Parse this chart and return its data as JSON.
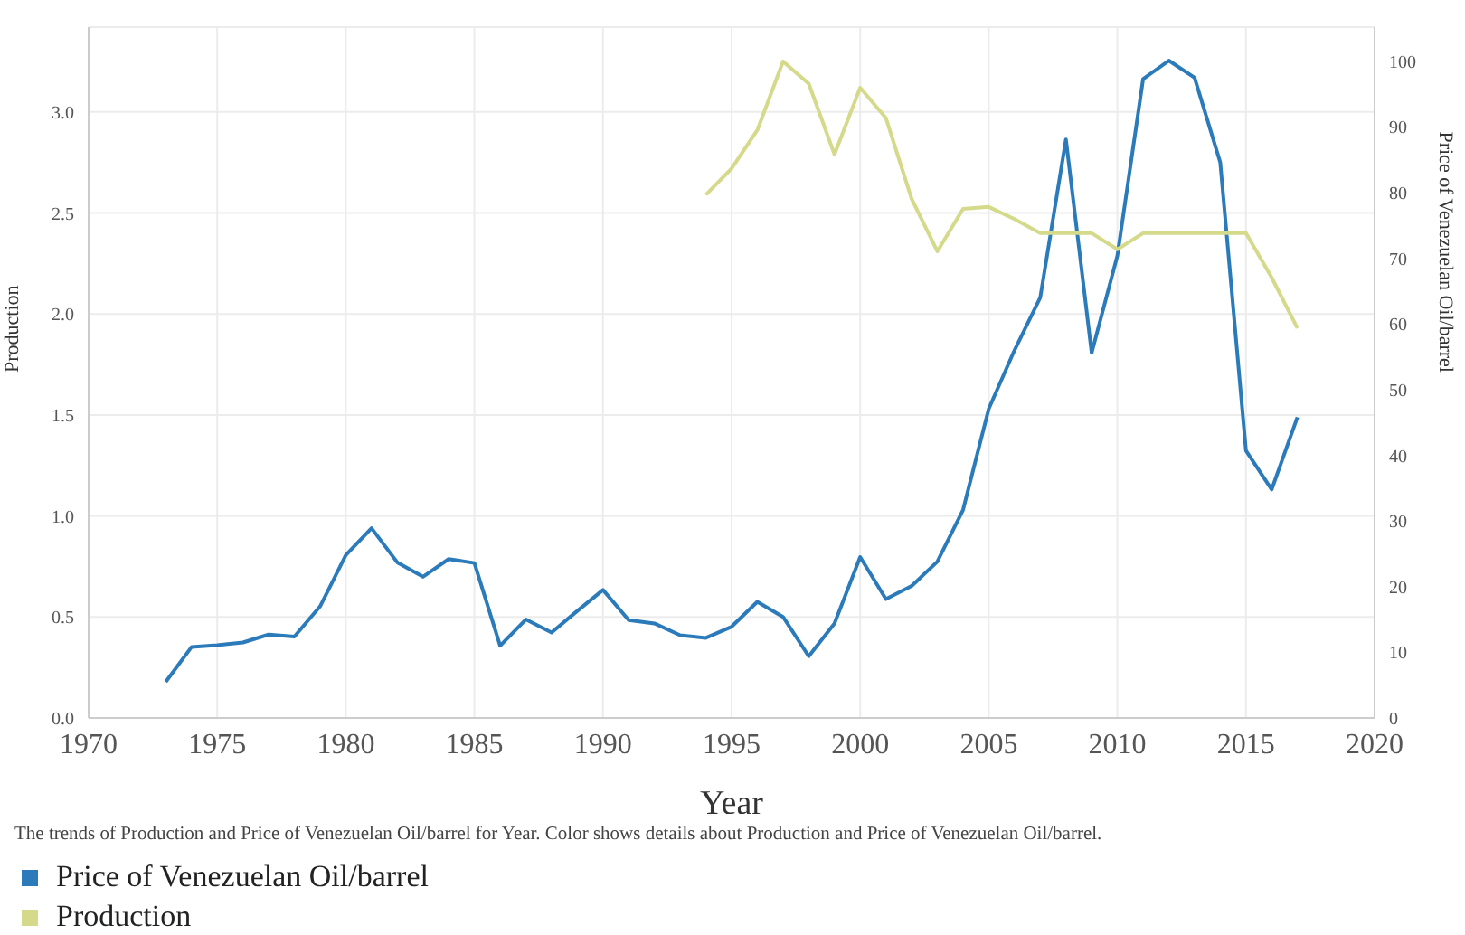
{
  "chart_data": {
    "type": "line",
    "xlabel": "Year",
    "ylabel": "Production",
    "y2label": "Price of Venezuelan Oil/barrel",
    "annotations": [
      "The trends of Production and Price of Venezuelan Oil/barrel for Year.  Color shows details about Production and Price of Venezuelan Oil/barrel."
    ],
    "series": [
      {
        "name": "Price of Venezuelan Oil/barrel",
        "color": "#2b7bba",
        "axis": "y2",
        "x": [
          1973,
          1974,
          1975,
          1976,
          1977,
          1978,
          1979,
          1980,
          1981,
          1982,
          1983,
          1984,
          1985,
          1986,
          1987,
          1988,
          1989,
          1990,
          1991,
          1992,
          1993,
          1994,
          1995,
          1996,
          1997,
          1998,
          1999,
          2000,
          2001,
          2002,
          2003,
          2004,
          2005,
          2006,
          2007,
          2008,
          2009,
          2010,
          2011,
          2012,
          2013,
          2014,
          2015,
          2016,
          2017
        ],
        "values": [
          5.5,
          10.8,
          11.1,
          11.5,
          12.7,
          12.4,
          17.0,
          24.8,
          28.9,
          23.7,
          21.5,
          24.2,
          23.6,
          11.0,
          15.0,
          13.0,
          16.3,
          19.5,
          14.9,
          14.4,
          12.6,
          12.2,
          13.9,
          17.7,
          15.4,
          9.4,
          14.4,
          24.5,
          18.1,
          20.1,
          23.8,
          31.7,
          47.1,
          56.0,
          64.0,
          88.1,
          55.6,
          70.4,
          97.3,
          100.1,
          97.5,
          84.6,
          40.7,
          34.8,
          45.8
        ]
      },
      {
        "name": "Production",
        "color": "#d5d98a",
        "axis": "y",
        "x": [
          1994,
          1995,
          1996,
          1997,
          1998,
          1999,
          2000,
          2001,
          2002,
          2003,
          2004,
          2005,
          2006,
          2007,
          2008,
          2009,
          2010,
          2011,
          2012,
          2013,
          2014,
          2015,
          2016,
          2017
        ],
        "values": [
          2.59,
          2.72,
          2.91,
          3.25,
          3.14,
          2.79,
          3.12,
          2.97,
          2.57,
          2.31,
          2.52,
          2.53,
          2.47,
          2.4,
          2.4,
          2.4,
          2.32,
          2.4,
          2.4,
          2.4,
          2.4,
          2.4,
          2.18,
          1.93
        ]
      }
    ],
    "xlim": [
      1970,
      2020
    ],
    "xticks": [
      1970,
      1975,
      1980,
      1985,
      1990,
      1995,
      2000,
      2005,
      2010,
      2015,
      2020
    ],
    "ylim": [
      0,
      3.42
    ],
    "yticks": [
      {
        "value": 0,
        "label": "0.0"
      },
      {
        "value": 0.5,
        "label": "0.5"
      },
      {
        "value": 1,
        "label": "1.0"
      },
      {
        "value": 1.5,
        "label": "1.5"
      },
      {
        "value": 2,
        "label": "2.0"
      },
      {
        "value": 2.5,
        "label": "2.5"
      },
      {
        "value": 3,
        "label": "3.0"
      }
    ],
    "y2lim": [
      0,
      105.2
    ],
    "y2ticks": [
      0,
      10,
      20,
      30,
      40,
      50,
      60,
      70,
      80,
      90,
      100
    ],
    "grid": true,
    "legend": "bottom left",
    "marker": "none",
    "line_style": "solid"
  }
}
